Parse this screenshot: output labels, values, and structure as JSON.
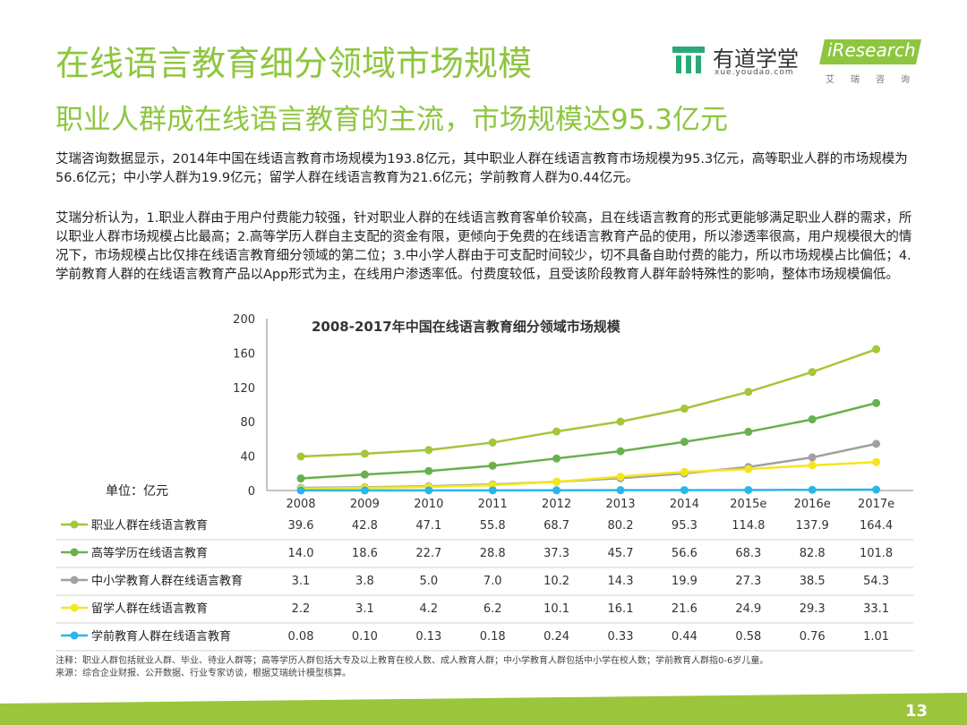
{
  "header": {
    "title": "在线语言教育细分领域市场规模",
    "subtitle": "职业人群成在线语言教育的主流，市场规模达95.3亿元"
  },
  "logos": {
    "youdao_name": "有道学堂",
    "youdao_url": "xue.youdao.com",
    "iresearch_name": "iResearch",
    "iresearch_cn": "艾瑞咨询"
  },
  "body": {
    "paragraph1": "艾瑞咨询数据显示，2014年中国在线语言教育市场规模为193.8亿元，其中职业人群在线语言教育市场规模为95.3亿元，高等职业人群的市场规模为56.6亿元；中小学人群为19.9亿元；留学人群在线语言教育为21.6亿元；学前教育人群为0.44亿元。",
    "paragraph2": "艾瑞分析认为，1.职业人群由于用户付费能力较强，针对职业人群的在线语言教育客单价较高，且在线语言教育的形式更能够满足职业人群的需求，所以职业人群市场规模占比最高；2.高等学历人群自主支配的资金有限，更倾向于免费的在线语言教育产品的使用，所以渗透率很高，用户规模很大的情况下，市场规模占比仅排在线语言教育细分领域的第二位；3.中小学人群由于可支配时间较少，切不具备自助付费的能力，所以市场规模占比偏低；4.学前教育人群的在线语言教育产品以App形式为主，在线用户渗透率低。付费度较低，且受该阶段教育人群年龄特殊性的影响，整体市场规模偏低。"
  },
  "chart_data": {
    "type": "line",
    "title": "2008-2017年中国在线语言教育细分领域市场规模",
    "unit_label": "单位：亿元",
    "x": [
      "2008",
      "2009",
      "2010",
      "2011",
      "2012",
      "2013",
      "2014",
      "2015e",
      "2016e",
      "2017e"
    ],
    "ylim": [
      0,
      200
    ],
    "yticks": [
      0,
      40,
      80,
      120,
      160,
      200
    ],
    "grid": false,
    "legend_placement": "bottom-table",
    "series": [
      {
        "name": "职业人群在线语言教育",
        "color": "#a4c639",
        "values": [
          39.6,
          42.8,
          47.1,
          55.8,
          68.7,
          80.2,
          95.3,
          114.8,
          137.9,
          164.4
        ],
        "labels": [
          "39.6",
          "42.8",
          "47.1",
          "55.8",
          "68.7",
          "80.2",
          "95.3",
          "114.8",
          "137.9",
          "164.4"
        ]
      },
      {
        "name": "高等学历在线语言教育",
        "color": "#6ab04c",
        "values": [
          14.0,
          18.6,
          22.7,
          28.8,
          37.3,
          45.7,
          56.6,
          68.3,
          82.8,
          101.8
        ],
        "labels": [
          "14.0",
          "18.6",
          "22.7",
          "28.8",
          "37.3",
          "45.7",
          "56.6",
          "68.3",
          "82.8",
          "101.8"
        ]
      },
      {
        "name": "中小学教育人群在线语言教育",
        "color": "#a0a0a0",
        "values": [
          3.1,
          3.8,
          5.0,
          7.0,
          10.2,
          14.3,
          19.9,
          27.3,
          38.5,
          54.3
        ],
        "labels": [
          "3.1",
          "3.8",
          "5.0",
          "7.0",
          "10.2",
          "14.3",
          "19.9",
          "27.3",
          "38.5",
          "54.3"
        ]
      },
      {
        "name": "留学人群在线语言教育",
        "color": "#f5e61b",
        "values": [
          2.2,
          3.1,
          4.2,
          6.2,
          10.1,
          16.1,
          21.6,
          24.9,
          29.3,
          33.1
        ],
        "labels": [
          "2.2",
          "3.1",
          "4.2",
          "6.2",
          "10.1",
          "16.1",
          "21.6",
          "24.9",
          "29.3",
          "33.1"
        ]
      },
      {
        "name": "学前教育人群在线语言教育",
        "color": "#29b6e8",
        "values": [
          0.08,
          0.1,
          0.13,
          0.18,
          0.24,
          0.33,
          0.44,
          0.58,
          0.76,
          1.01
        ],
        "labels": [
          "0.08",
          "0.10",
          "0.13",
          "0.18",
          "0.24",
          "0.33",
          "0.44",
          "0.58",
          "0.76",
          "1.01"
        ]
      }
    ]
  },
  "footer": {
    "note": "注释：职业人群包括就业人群、毕业、待业人群等；高等学历人群包括大专及以上教育在校人数、成人教育人群；中小学教育人群包括中小学在校人数；学前教育人群指0-6岁儿童。",
    "source": "来源：综合企业财报、公开数据、行业专家访谈，根据艾瑞统计模型核算。",
    "page_number": "13"
  },
  "colors": {
    "accent": "#8dc63f",
    "footer_bar": "#9bc53d",
    "text": "#222222"
  }
}
